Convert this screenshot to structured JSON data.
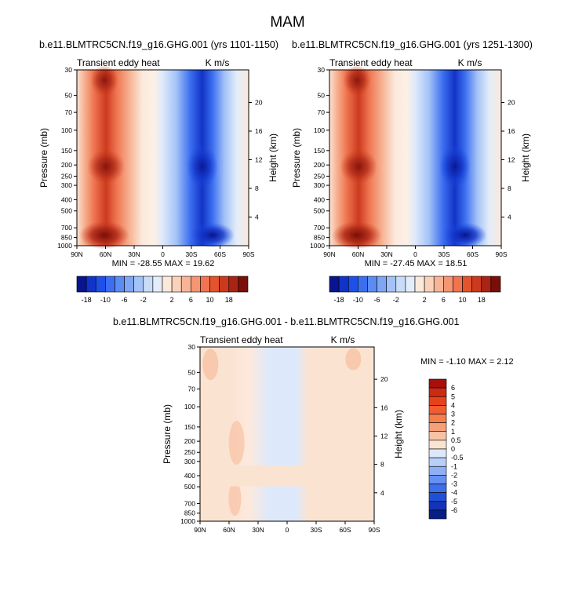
{
  "page": {
    "title": "MAM"
  },
  "colorbar_main": {
    "labels": [
      "-18",
      "-10",
      "-6",
      "-2",
      "2",
      "6",
      "10",
      "18"
    ],
    "colors": [
      "#08158f",
      "#1233c7",
      "#1e4fe8",
      "#3c6ff0",
      "#5a8cf3",
      "#7ea6f5",
      "#a3c2f7",
      "#c7dcf7",
      "#e3edf9",
      "#fbe9dc",
      "#f9d2b9",
      "#f7b596",
      "#f59572",
      "#ef744f",
      "#e3532e",
      "#cc3a1e",
      "#a82414",
      "#7a0e08"
    ]
  },
  "colorbar_diff": {
    "labels": [
      "6",
      "5",
      "4",
      "3",
      "2",
      "1",
      "0.5",
      "0",
      "-0.5",
      "-1",
      "-2",
      "-3",
      "-4",
      "-5",
      "-6"
    ],
    "colors": [
      "#a80f0a",
      "#cc2a12",
      "#e6421c",
      "#f15d30",
      "#f47e4e",
      "#f6a07a",
      "#f8c2a4",
      "#fbe3d2",
      "#dde9fb",
      "#b8cff8",
      "#8fb0f5",
      "#6690f2",
      "#3e6ee9",
      "#2150d8",
      "#1433b8",
      "#081d86"
    ]
  },
  "chart_data": [
    {
      "type": "heatmap",
      "title": "b.e11.BLMTRC5CN.f19_g16.GHG.001 (yrs 1101-1150)",
      "left_string": "Transient eddy heat",
      "right_string": "K m/s",
      "xlabel": "",
      "ylabel": "Pressure (mb)",
      "ylabel_right": "Height (km)",
      "x_ticks": [
        "90N",
        "60N",
        "30N",
        "0",
        "30S",
        "60S",
        "90S"
      ],
      "y_ticks": [
        "30",
        "50",
        "70",
        "100",
        "150",
        "200",
        "250",
        "300",
        "400",
        "500",
        "700",
        "850",
        "1000"
      ],
      "y_right_ticks": [
        "20",
        "16",
        "12",
        "8",
        "4"
      ],
      "stats": "MIN = -28.55  MAX = 19.62"
    },
    {
      "type": "heatmap",
      "title": "b.e11.BLMTRC5CN.f19_g16.GHG.001 (yrs 1251-1300)",
      "left_string": "Transient eddy heat",
      "right_string": "K m/s",
      "xlabel": "",
      "ylabel": "Pressure (mb)",
      "ylabel_right": "Height (km)",
      "x_ticks": [
        "90N",
        "60N",
        "30N",
        "0",
        "30S",
        "60S",
        "90S"
      ],
      "y_ticks": [
        "30",
        "50",
        "70",
        "100",
        "150",
        "200",
        "250",
        "300",
        "400",
        "500",
        "700",
        "850",
        "1000"
      ],
      "y_right_ticks": [
        "20",
        "16",
        "12",
        "8",
        "4"
      ],
      "stats": "MIN = -27.45  MAX = 18.51"
    },
    {
      "type": "heatmap",
      "title": "b.e11.BLMTRC5CN.f19_g16.GHG.001 - b.e11.BLMTRC5CN.f19_g16.GHG.001",
      "left_string": "Transient eddy heat",
      "right_string": "K m/s",
      "xlabel": "",
      "ylabel": "Pressure (mb)",
      "ylabel_right": "Height (km)",
      "x_ticks": [
        "90N",
        "60N",
        "30N",
        "0",
        "30S",
        "60S",
        "90S"
      ],
      "y_ticks": [
        "30",
        "50",
        "70",
        "100",
        "150",
        "200",
        "250",
        "300",
        "400",
        "500",
        "700",
        "850",
        "1000"
      ],
      "y_right_ticks": [
        "20",
        "16",
        "12",
        "8",
        "4"
      ],
      "stats": "MIN = -1.10  MAX =  2.12"
    }
  ]
}
